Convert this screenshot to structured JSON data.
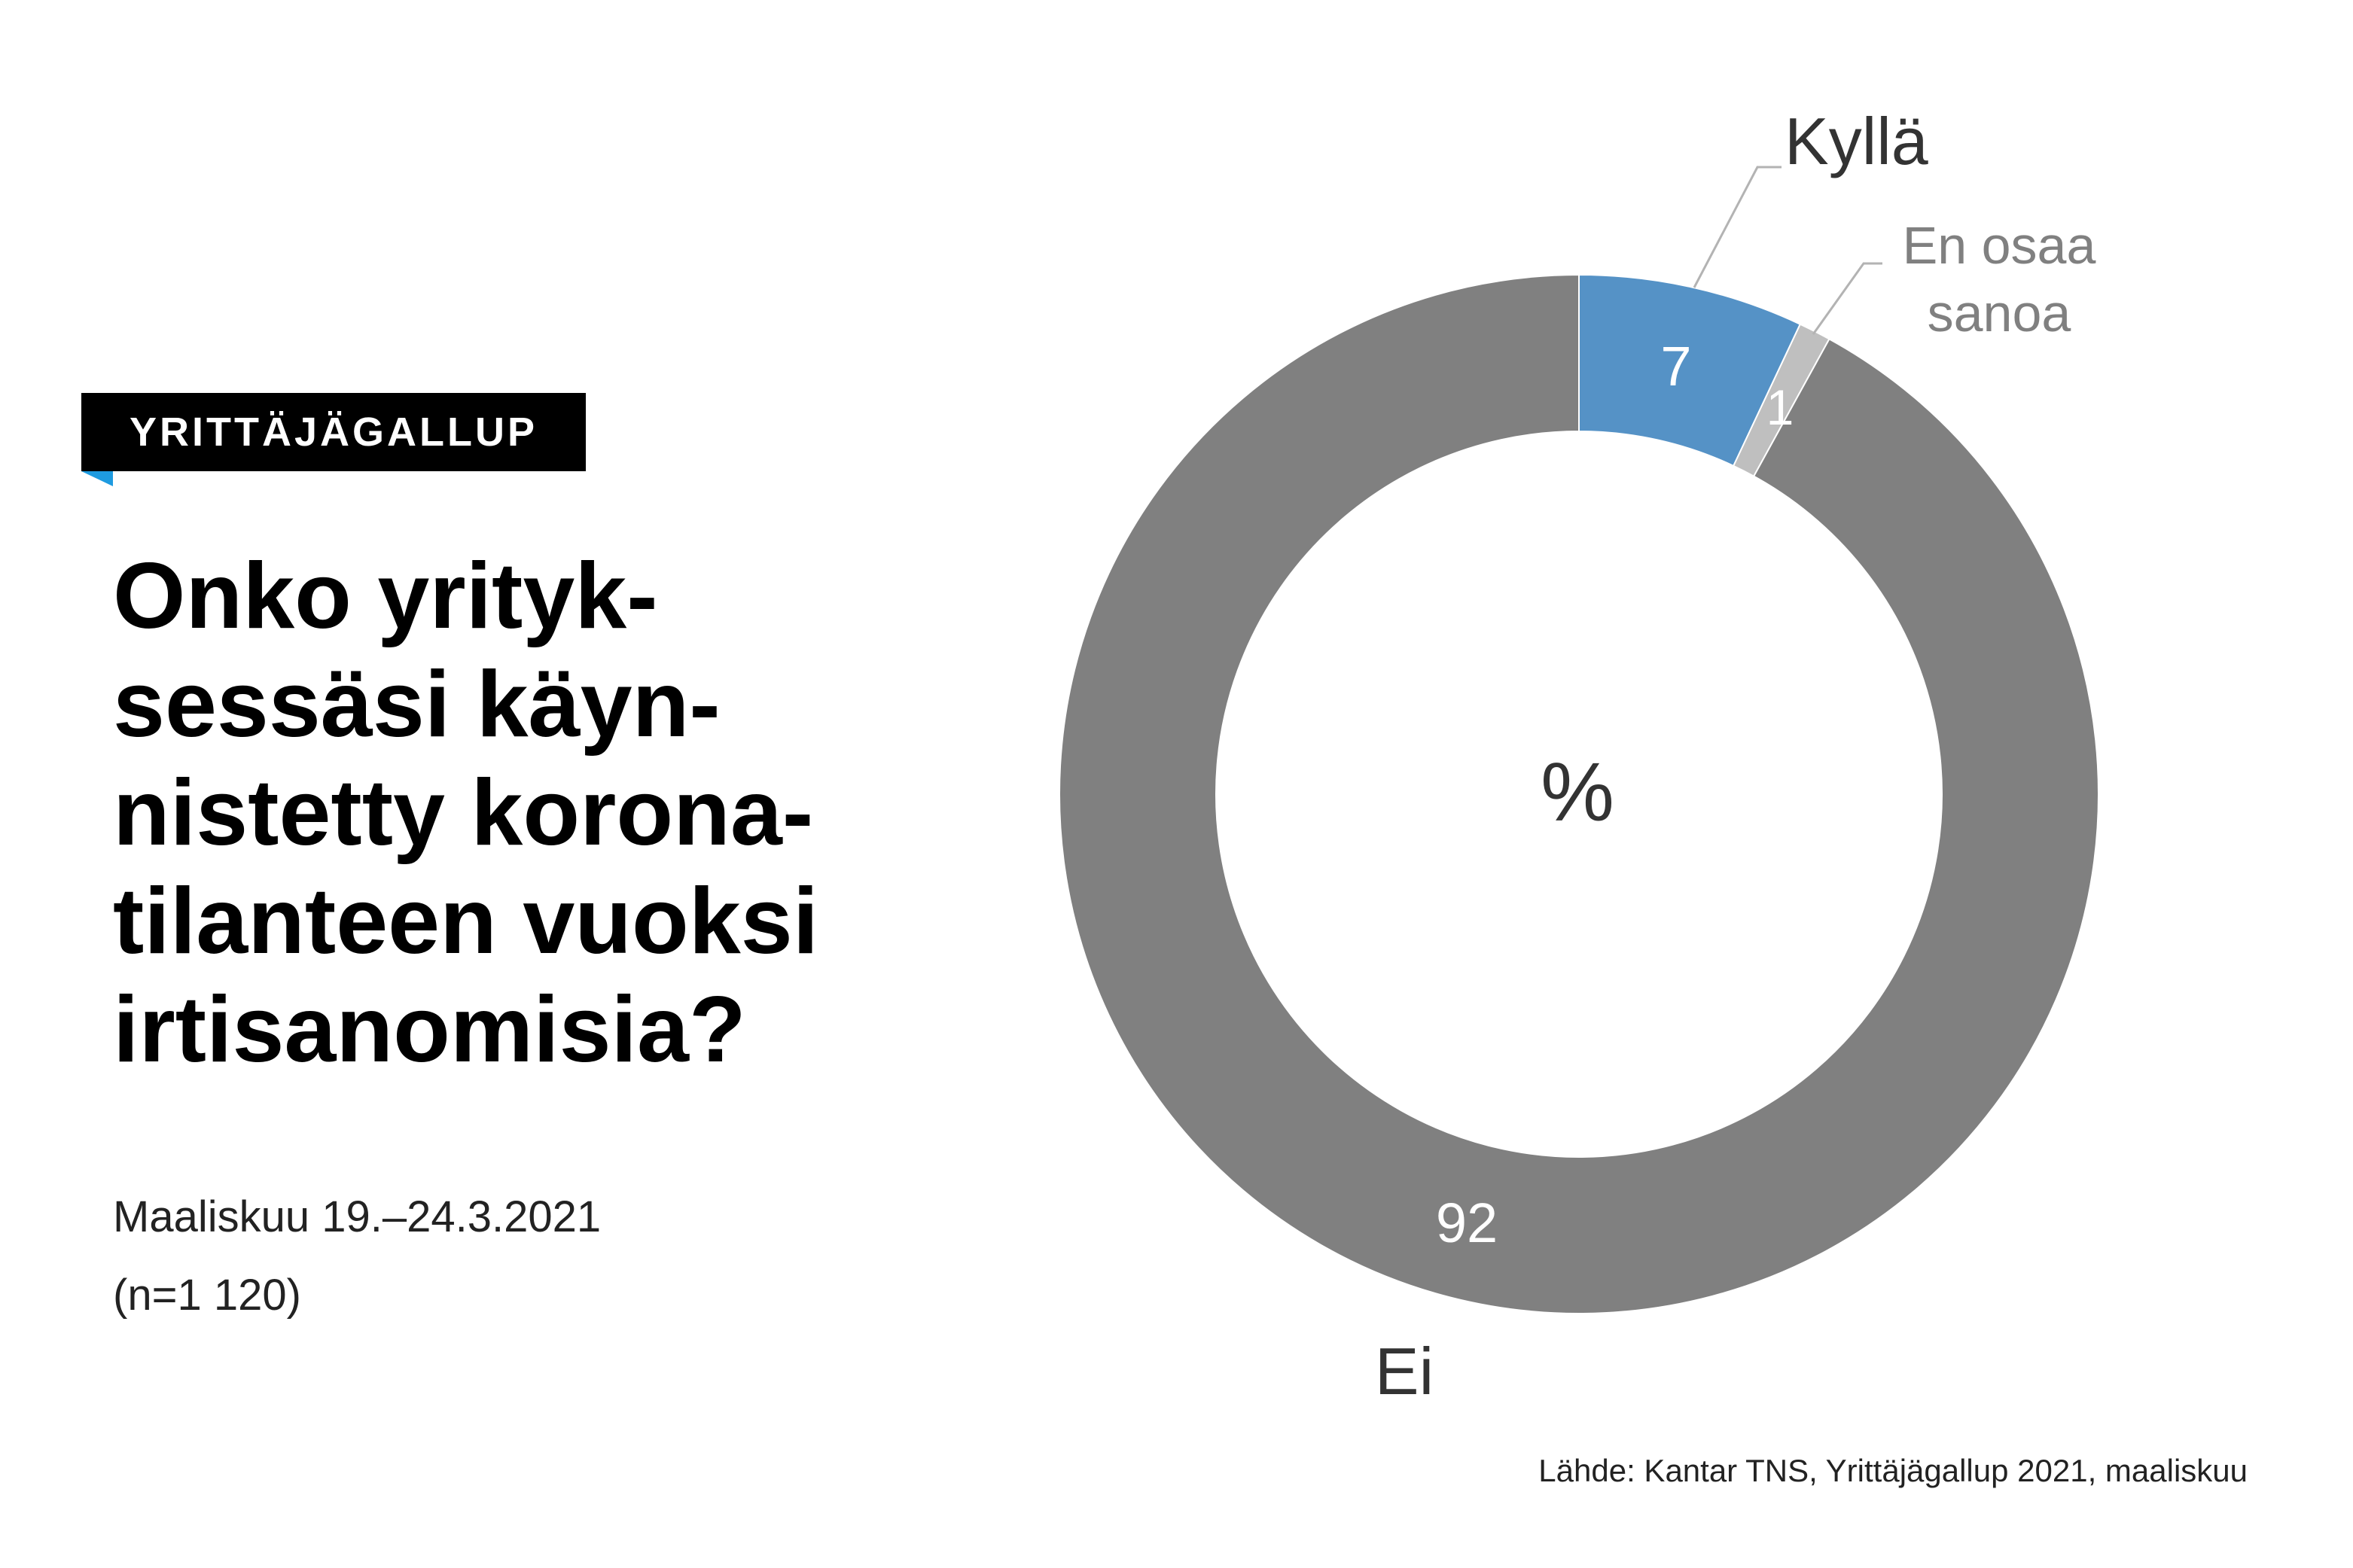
{
  "badge": "YRITTÄJÄGALLUP",
  "title_lines": [
    "Onko yrityk-",
    "sessäsi käyn-",
    "nistetty korona-",
    "tilanteen vuoksi",
    "irtisanomisia?"
  ],
  "period": "Maaliskuu 19.–24.3.2021",
  "sample": "(n=1 120)",
  "source": "Lähde: Kantar TNS, Yrittäjägallup 2021, maaliskuu",
  "colors": {
    "kylla": "#5592c6",
    "en_osaa": "#bfbfbf",
    "ei": "#808080",
    "badge_accent": "#1e9be0"
  },
  "chart_data": {
    "type": "pie",
    "donut": true,
    "center_label": "%",
    "slices": [
      {
        "label": "Kyllä",
        "value": 7,
        "color": "#5592c6"
      },
      {
        "label": "En osaa sanoa",
        "value": 1,
        "color": "#bfbfbf"
      },
      {
        "label": "Ei",
        "value": 92,
        "color": "#808080"
      }
    ]
  }
}
